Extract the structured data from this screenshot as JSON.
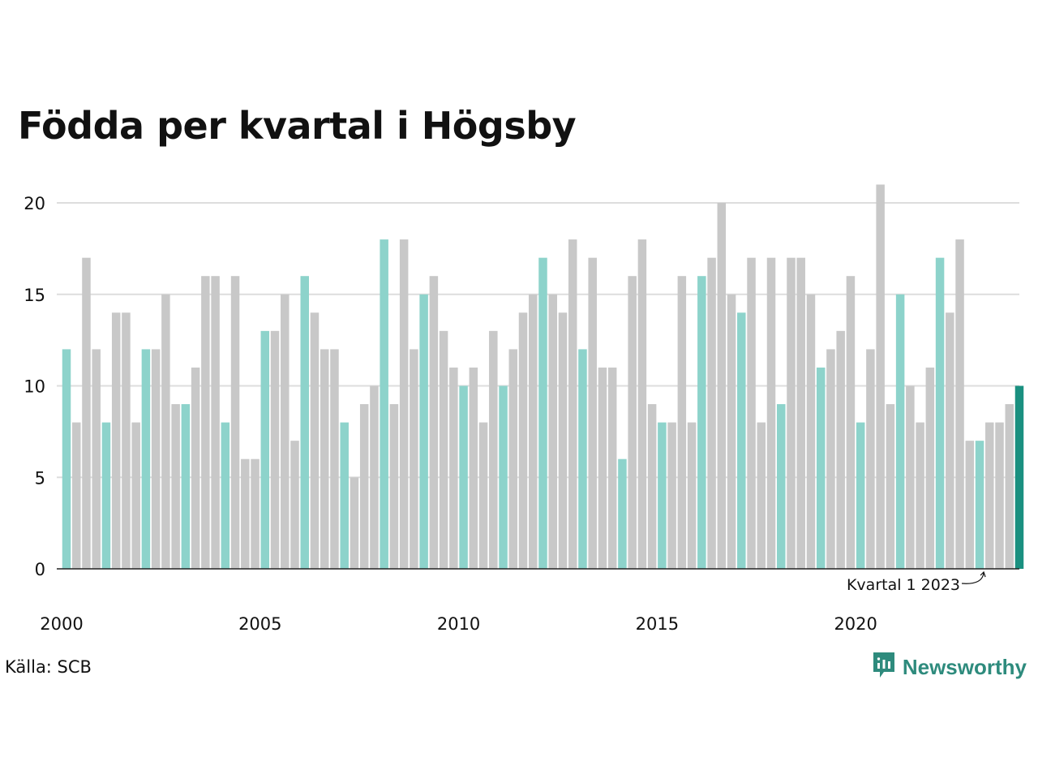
{
  "colors": {
    "q1": "#8dd3cb",
    "other": "#c8c8c8",
    "latest": "#1a9080",
    "grid": "#dddddd",
    "axis": "#222222",
    "brand": "#2e8b7d"
  },
  "source": "Källa: SCB",
  "brand": {
    "name": "Newsworthy",
    "icon": "newsworthy-logo-icon"
  },
  "annotation": {
    "text": "Kvartal 1 2023",
    "index": 92
  },
  "chart_data": {
    "type": "bar",
    "title": "Födda per kvartal i Högsby",
    "xlabel": "",
    "ylabel": "",
    "ylim": [
      0,
      21
    ],
    "yticks": [
      0,
      5,
      10,
      15,
      20
    ],
    "xtick_labels": [
      "2000",
      "2005",
      "2010",
      "2015",
      "2020"
    ],
    "xtick_indices": [
      0,
      20,
      40,
      60,
      80
    ],
    "grid": true,
    "legend": "none",
    "categories": [
      "2000 Q1",
      "2000 Q2",
      "2000 Q3",
      "2000 Q4",
      "2001 Q1",
      "2001 Q2",
      "2001 Q3",
      "2001 Q4",
      "2002 Q1",
      "2002 Q2",
      "2002 Q3",
      "2002 Q4",
      "2003 Q1",
      "2003 Q2",
      "2003 Q3",
      "2003 Q4",
      "2004 Q1",
      "2004 Q2",
      "2004 Q3",
      "2004 Q4",
      "2005 Q1",
      "2005 Q2",
      "2005 Q3",
      "2005 Q4",
      "2006 Q1",
      "2006 Q2",
      "2006 Q3",
      "2006 Q4",
      "2007 Q1",
      "2007 Q2",
      "2007 Q3",
      "2007 Q4",
      "2008 Q1",
      "2008 Q2",
      "2008 Q3",
      "2008 Q4",
      "2009 Q1",
      "2009 Q2",
      "2009 Q3",
      "2009 Q4",
      "2010 Q1",
      "2010 Q2",
      "2010 Q3",
      "2010 Q4",
      "2011 Q1",
      "2011 Q2",
      "2011 Q3",
      "2011 Q4",
      "2012 Q1",
      "2012 Q2",
      "2012 Q3",
      "2012 Q4",
      "2013 Q1",
      "2013 Q2",
      "2013 Q3",
      "2013 Q4",
      "2014 Q1",
      "2014 Q2",
      "2014 Q3",
      "2014 Q4",
      "2015 Q1",
      "2015 Q2",
      "2015 Q3",
      "2015 Q4",
      "2016 Q1",
      "2016 Q2",
      "2016 Q3",
      "2016 Q4",
      "2017 Q1",
      "2017 Q2",
      "2017 Q3",
      "2017 Q4",
      "2018 Q1",
      "2018 Q2",
      "2018 Q3",
      "2018 Q4",
      "2019 Q1",
      "2019 Q2",
      "2019 Q3",
      "2019 Q4",
      "2020 Q1",
      "2020 Q2",
      "2020 Q3",
      "2020 Q4",
      "2021 Q1",
      "2021 Q2",
      "2021 Q3",
      "2021 Q4",
      "2022 Q1",
      "2022 Q2",
      "2022 Q3",
      "2022 Q4",
      "2023 Q1",
      "2023 Q2",
      "2023 Q3",
      "2023 Q4",
      "2024 Q1"
    ],
    "values": [
      12,
      8,
      17,
      12,
      8,
      14,
      14,
      8,
      12,
      12,
      15,
      9,
      9,
      11,
      16,
      16,
      8,
      16,
      6,
      6,
      13,
      13,
      15,
      7,
      16,
      14,
      12,
      12,
      8,
      5,
      9,
      10,
      18,
      9,
      18,
      12,
      15,
      16,
      13,
      11,
      10,
      11,
      8,
      13,
      10,
      12,
      14,
      15,
      17,
      15,
      14,
      18,
      12,
      17,
      11,
      11,
      6,
      16,
      18,
      9,
      8,
      8,
      16,
      8,
      16,
      17,
      20,
      15,
      14,
      17,
      8,
      17,
      9,
      17,
      17,
      15,
      11,
      12,
      13,
      16,
      8,
      12,
      21,
      9,
      15,
      10,
      8,
      11,
      17,
      14,
      18,
      7,
      7,
      8,
      8,
      9,
      10
    ]
  }
}
